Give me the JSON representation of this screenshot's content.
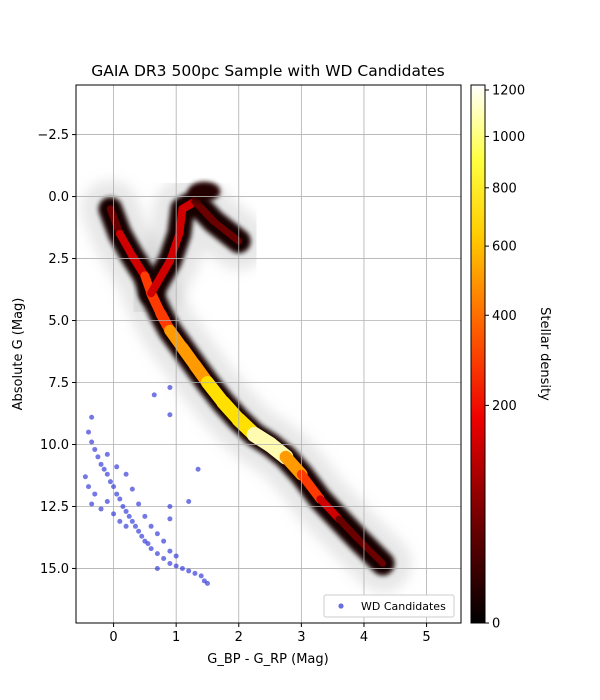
{
  "chart_data": {
    "type": "scatter",
    "title": "GAIA DR3 500pc Sample with WD Candidates",
    "xlabel": "G_BP - G_RP (Mag)",
    "ylabel": "Absolute G (Mag)",
    "xlim": [
      -0.6,
      5.55
    ],
    "ylim": [
      17.2,
      -4.5
    ],
    "y_inverted": true,
    "grid": true,
    "xticks": [
      0,
      1,
      2,
      3,
      4,
      5
    ],
    "xtick_labels": [
      "0",
      "1",
      "2",
      "3",
      "4",
      "5"
    ],
    "yticks": [
      -2.5,
      0.0,
      2.5,
      5.0,
      7.5,
      10.0,
      12.5,
      15.0
    ],
    "ytick_labels": [
      "−2.5",
      "0.0",
      "2.5",
      "5.0",
      "7.5",
      "10.0",
      "12.5",
      "15.0"
    ],
    "density_layer": {
      "name": "Stellar density",
      "colormap": "hot",
      "colorbar_label": "Stellar density",
      "colorbar_ticks": [
        0,
        200,
        400,
        600,
        800,
        1000,
        1200
      ],
      "colorbar_tick_labels": [
        "0",
        "200",
        "400",
        "600",
        "800",
        "1000",
        "1200"
      ],
      "main_sequence_ridge": [
        {
          "x": -0.05,
          "y": 0.5,
          "d": 120
        },
        {
          "x": 0.1,
          "y": 1.5,
          "d": 180
        },
        {
          "x": 0.3,
          "y": 2.4,
          "d": 230
        },
        {
          "x": 0.5,
          "y": 3.2,
          "d": 300
        },
        {
          "x": 0.6,
          "y": 3.9,
          "d": 420
        },
        {
          "x": 0.75,
          "y": 4.7,
          "d": 520
        },
        {
          "x": 0.9,
          "y": 5.4,
          "d": 620
        },
        {
          "x": 1.1,
          "y": 6.1,
          "d": 700
        },
        {
          "x": 1.3,
          "y": 6.8,
          "d": 760
        },
        {
          "x": 1.5,
          "y": 7.5,
          "d": 800
        },
        {
          "x": 1.75,
          "y": 8.3,
          "d": 880
        },
        {
          "x": 2.0,
          "y": 9.0,
          "d": 950
        },
        {
          "x": 2.25,
          "y": 9.6,
          "d": 1050
        },
        {
          "x": 2.5,
          "y": 10.0,
          "d": 1200
        },
        {
          "x": 2.75,
          "y": 10.5,
          "d": 1000
        },
        {
          "x": 3.0,
          "y": 11.2,
          "d": 500
        },
        {
          "x": 3.3,
          "y": 12.2,
          "d": 250
        },
        {
          "x": 3.6,
          "y": 13.0,
          "d": 120
        },
        {
          "x": 3.9,
          "y": 13.8,
          "d": 60
        },
        {
          "x": 4.3,
          "y": 14.8,
          "d": 20
        }
      ],
      "giant_branch_ridge": [
        {
          "x": 0.6,
          "y": 3.9,
          "d": 300
        },
        {
          "x": 0.9,
          "y": 2.6,
          "d": 200
        },
        {
          "x": 1.05,
          "y": 1.5,
          "d": 180
        },
        {
          "x": 1.1,
          "y": 0.5,
          "d": 300
        },
        {
          "x": 1.3,
          "y": 0.2,
          "d": 200
        },
        {
          "x": 1.6,
          "y": 1.0,
          "d": 120
        },
        {
          "x": 2.0,
          "y": 1.8,
          "d": 60
        }
      ],
      "red_clump": {
        "x": 1.45,
        "y": -0.2,
        "d": 180
      }
    },
    "series": [
      {
        "name": "WD Candidates",
        "color": "#2a2fd6",
        "points": [
          [
            -0.4,
            9.5
          ],
          [
            -0.35,
            9.9
          ],
          [
            -0.3,
            10.2
          ],
          [
            -0.25,
            10.5
          ],
          [
            -0.2,
            10.8
          ],
          [
            -0.15,
            11.0
          ],
          [
            -0.1,
            11.2
          ],
          [
            -0.05,
            11.5
          ],
          [
            0.0,
            11.7
          ],
          [
            0.05,
            12.0
          ],
          [
            0.1,
            12.2
          ],
          [
            0.15,
            12.5
          ],
          [
            0.2,
            12.7
          ],
          [
            0.25,
            12.9
          ],
          [
            0.3,
            13.1
          ],
          [
            0.35,
            13.3
          ],
          [
            0.4,
            13.5
          ],
          [
            0.45,
            13.7
          ],
          [
            0.5,
            13.9
          ],
          [
            0.55,
            14.0
          ],
          [
            0.6,
            14.2
          ],
          [
            0.7,
            14.4
          ],
          [
            0.8,
            14.6
          ],
          [
            0.9,
            14.8
          ],
          [
            1.0,
            14.9
          ],
          [
            1.1,
            15.0
          ],
          [
            1.2,
            15.1
          ],
          [
            1.3,
            15.2
          ],
          [
            1.45,
            15.5
          ],
          [
            -0.45,
            11.3
          ],
          [
            -0.4,
            11.7
          ],
          [
            -0.35,
            12.4
          ],
          [
            -0.3,
            12.0
          ],
          [
            -0.2,
            12.6
          ],
          [
            -0.1,
            12.3
          ],
          [
            0.0,
            12.8
          ],
          [
            0.1,
            13.1
          ],
          [
            0.2,
            13.3
          ],
          [
            0.05,
            10.9
          ],
          [
            -0.1,
            10.4
          ],
          [
            0.2,
            11.2
          ],
          [
            0.3,
            11.8
          ],
          [
            0.4,
            12.4
          ],
          [
            0.5,
            12.9
          ],
          [
            0.6,
            13.3
          ],
          [
            0.7,
            13.6
          ],
          [
            0.8,
            13.9
          ],
          [
            0.9,
            14.3
          ],
          [
            1.0,
            14.5
          ],
          [
            -0.35,
            8.9
          ],
          [
            0.65,
            8.0
          ],
          [
            0.9,
            7.7
          ],
          [
            0.9,
            8.8
          ],
          [
            1.35,
            11.0
          ],
          [
            1.2,
            12.3
          ],
          [
            0.9,
            12.5
          ],
          [
            0.9,
            13.0
          ],
          [
            1.5,
            15.6
          ],
          [
            1.4,
            15.3
          ],
          [
            0.7,
            15.0
          ]
        ]
      }
    ],
    "legend": {
      "position": "bottom-right",
      "entries": [
        "WD Candidates"
      ]
    }
  }
}
